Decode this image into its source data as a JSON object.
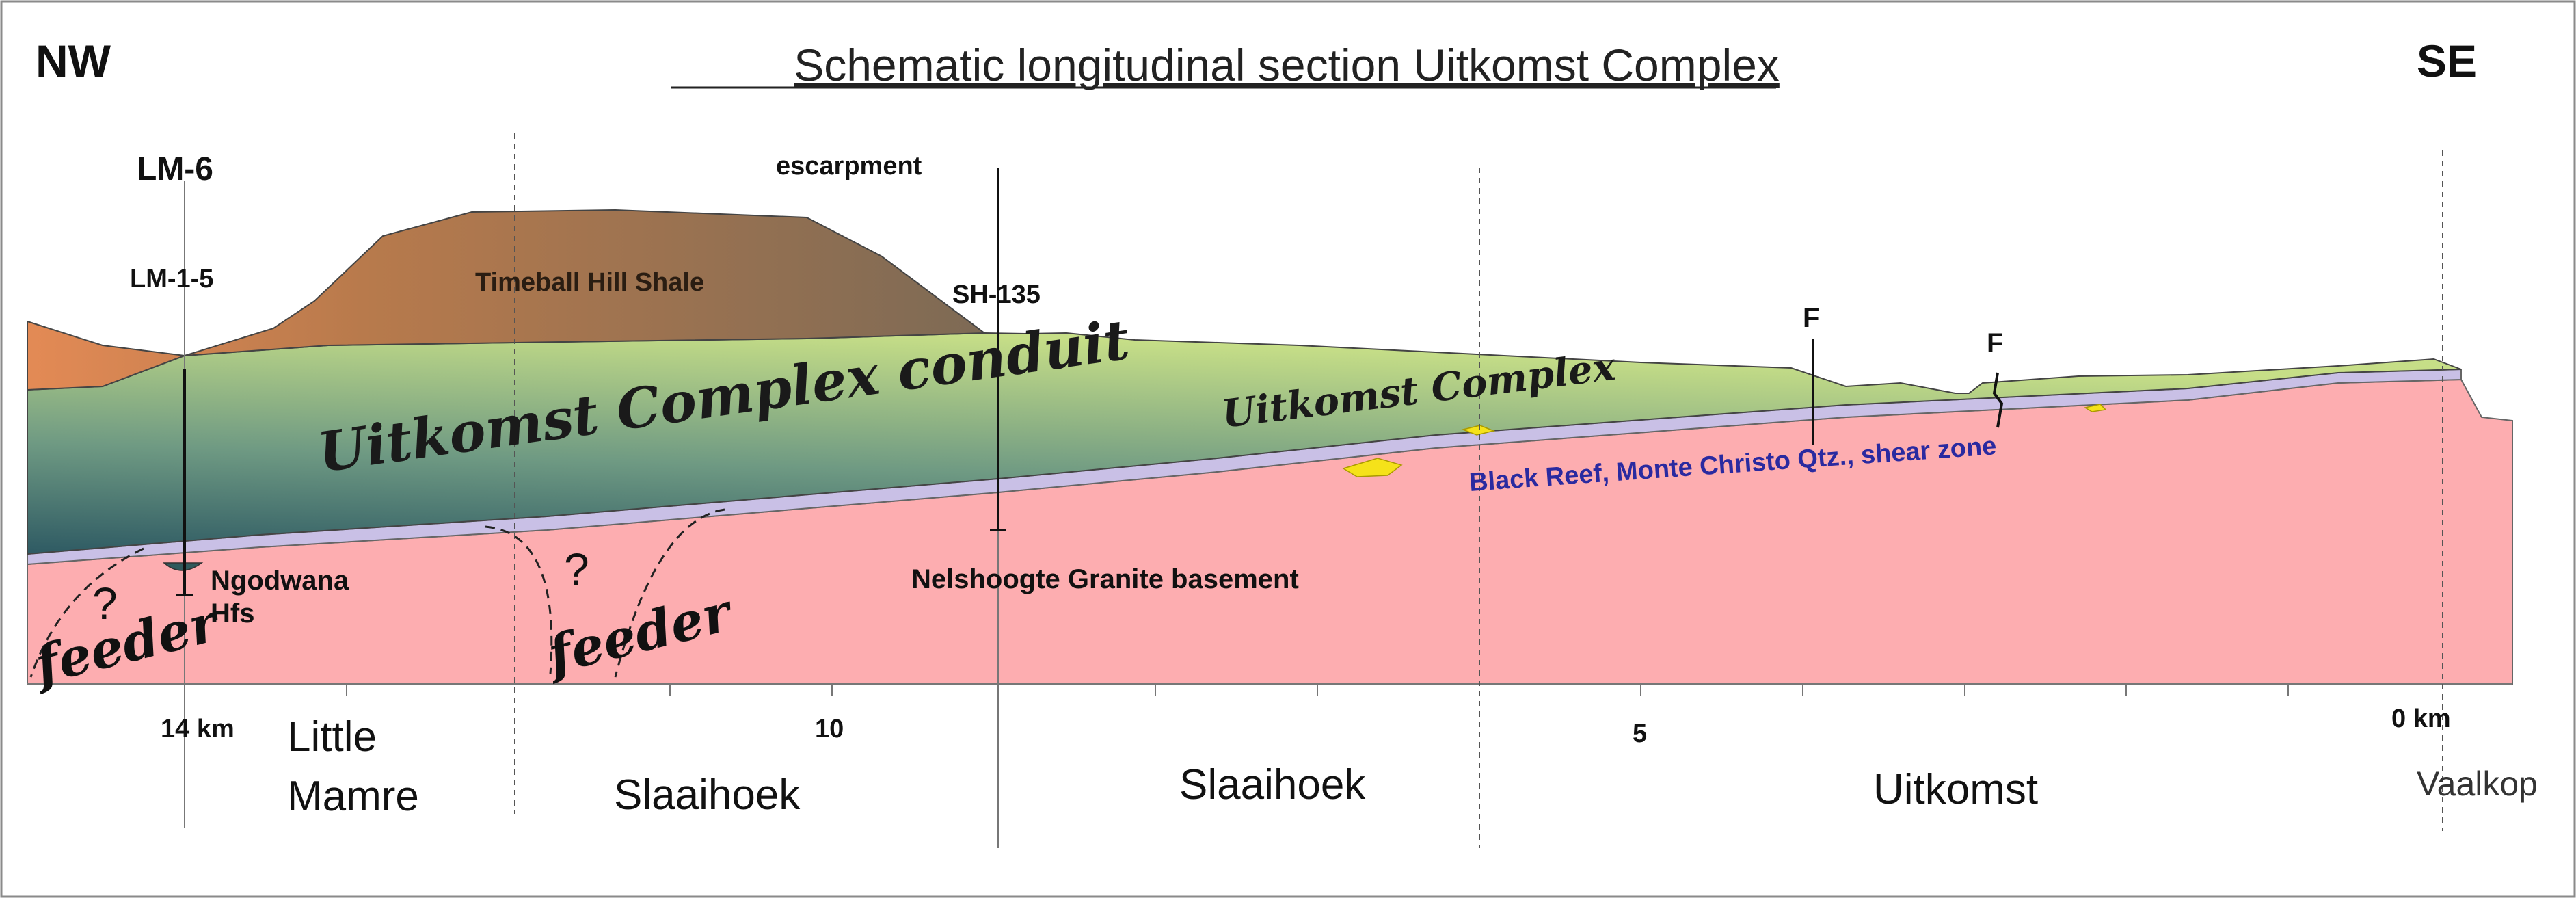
{
  "title": "Schematic longitudinal section Uitkomst Complex",
  "orientation": {
    "left": "NW",
    "right": "SE"
  },
  "boreholes": [
    "LM-6",
    "LM-1-5",
    "SH-135"
  ],
  "landmarks": {
    "escarpment": "escarpment"
  },
  "faults": [
    "F",
    "F"
  ],
  "units": {
    "shale": "Timeball Hill Shale",
    "conduit": "Uitkomst Complex conduit",
    "complex": "Uitkomst Complex",
    "reef": "Black Reef, Monte Christo Qtz., shear zone",
    "basement": "Nelshoogte Granite basement",
    "hfs_line1": "Ngodwana",
    "hfs_line2": "Hfs"
  },
  "feeders": [
    {
      "question": "?",
      "label": "feeder"
    },
    {
      "question": "?",
      "label": "feeder"
    }
  ],
  "distance_labels": [
    "14 km",
    "10",
    "5",
    "0 km"
  ],
  "farms": {
    "little_mamre_1": "Little",
    "little_mamre_2": "Mamre",
    "slaaihoek_1": "Slaaihoek",
    "slaaihoek_2": "Slaaihoek",
    "uitkomst": "Uitkomst",
    "vaalkop": "Vaalkop"
  },
  "colors": {
    "granite": "#fdadb0",
    "reef": "#c9c0e6",
    "complex_light": "#c6de87",
    "complex_dark": "#2e5a63",
    "shale_left": "#e38a55",
    "shale_top": "#9b6e4e",
    "frame": "#888888",
    "reef_label": "#2a2aa0",
    "gold": "#f5e21a"
  }
}
